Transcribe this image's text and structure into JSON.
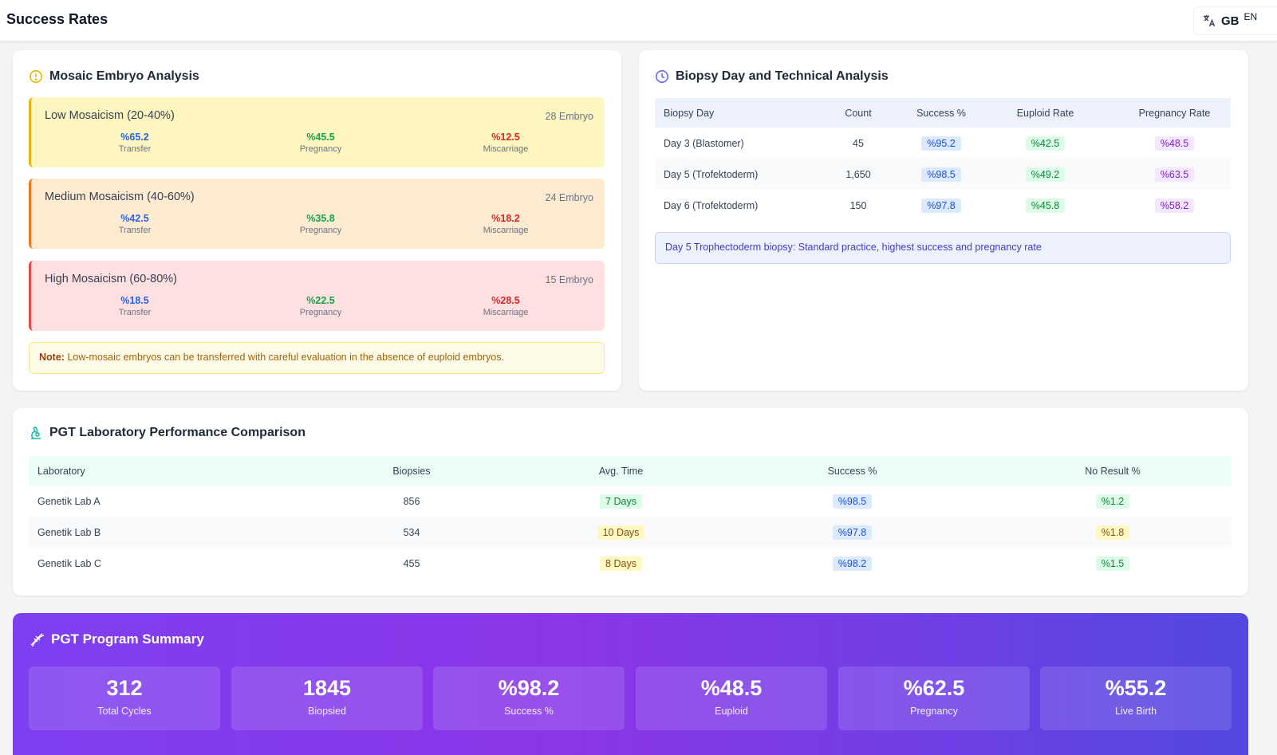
{
  "header": {
    "title": "Success Rates",
    "lang_code": "GB",
    "lang_label": "EN"
  },
  "mosaic": {
    "title": "Mosaic Embryo Analysis",
    "groups": [
      {
        "name": "Low Mosaicism (20-40%)",
        "count": "28 Embryo",
        "transfer": "%65.2",
        "pregnancy": "%45.5",
        "miscarriage": "%12.5"
      },
      {
        "name": "Medium Mosaicism (40-60%)",
        "count": "24 Embryo",
        "transfer": "%42.5",
        "pregnancy": "%35.8",
        "miscarriage": "%18.2"
      },
      {
        "name": "High Mosaicism (60-80%)",
        "count": "15 Embryo",
        "transfer": "%18.5",
        "pregnancy": "%22.5",
        "miscarriage": "%28.5"
      }
    ],
    "labels": {
      "transfer": "Transfer",
      "pregnancy": "Pregnancy",
      "miscarriage": "Miscarriage"
    },
    "note_label": "Note:",
    "note_text": "Low-mosaic embryos can be transferred with careful evaluation in the absence of euploid embryos.",
    "colors": {
      "low": "#fef6c0",
      "low_border": "#eab308",
      "medium": "#feebd2",
      "medium_border": "#f97316",
      "high": "#fde0df",
      "high_border": "#ef4444"
    }
  },
  "biopsy": {
    "title": "Biopsy Day and Technical Analysis",
    "headers": [
      "Biopsy Day",
      "Count",
      "Success %",
      "Euploid Rate",
      "Pregnancy Rate"
    ],
    "rows": [
      {
        "day": "Day 3 (Blastomer)",
        "count": "45",
        "success": "%95.2",
        "euploid": "%42.5",
        "pregnancy": "%48.5"
      },
      {
        "day": "Day 5 (Trofektoderm)",
        "count": "1,650",
        "success": "%98.5",
        "euploid": "%49.2",
        "pregnancy": "%63.5"
      },
      {
        "day": "Day 6 (Trofektoderm)",
        "count": "150",
        "success": "%97.8",
        "euploid": "%45.8",
        "pregnancy": "%58.2"
      }
    ],
    "info": "Day 5 Trophectoderm biopsy: Standard practice, highest success and pregnancy rate"
  },
  "labs": {
    "title": "PGT Laboratory Performance Comparison",
    "headers": [
      "Laboratory",
      "Biopsies",
      "Avg. Time",
      "Success %",
      "No Result %"
    ],
    "rows": [
      {
        "name": "Genetik Lab A",
        "biopsies": "856",
        "time": "7 Days",
        "success": "%98.5",
        "noresult": "%1.2",
        "time_tone": "green",
        "nr_tone": "green"
      },
      {
        "name": "Genetik Lab B",
        "biopsies": "534",
        "time": "10 Days",
        "success": "%97.8",
        "noresult": "%1.8",
        "time_tone": "yellow",
        "nr_tone": "yellow"
      },
      {
        "name": "Genetik Lab C",
        "biopsies": "455",
        "time": "8 Days",
        "success": "%98.2",
        "noresult": "%1.5",
        "time_tone": "yellow",
        "nr_tone": "green"
      }
    ]
  },
  "summary": {
    "title": "PGT Program Summary",
    "stats": [
      {
        "value": "312",
        "label": "Total Cycles"
      },
      {
        "value": "1845",
        "label": "Biopsied"
      },
      {
        "value": "%98.2",
        "label": "Success %"
      },
      {
        "value": "%48.5",
        "label": "Euploid"
      },
      {
        "value": "%62.5",
        "label": "Pregnancy"
      },
      {
        "value": "%55.2",
        "label": "Live Birth"
      }
    ]
  }
}
